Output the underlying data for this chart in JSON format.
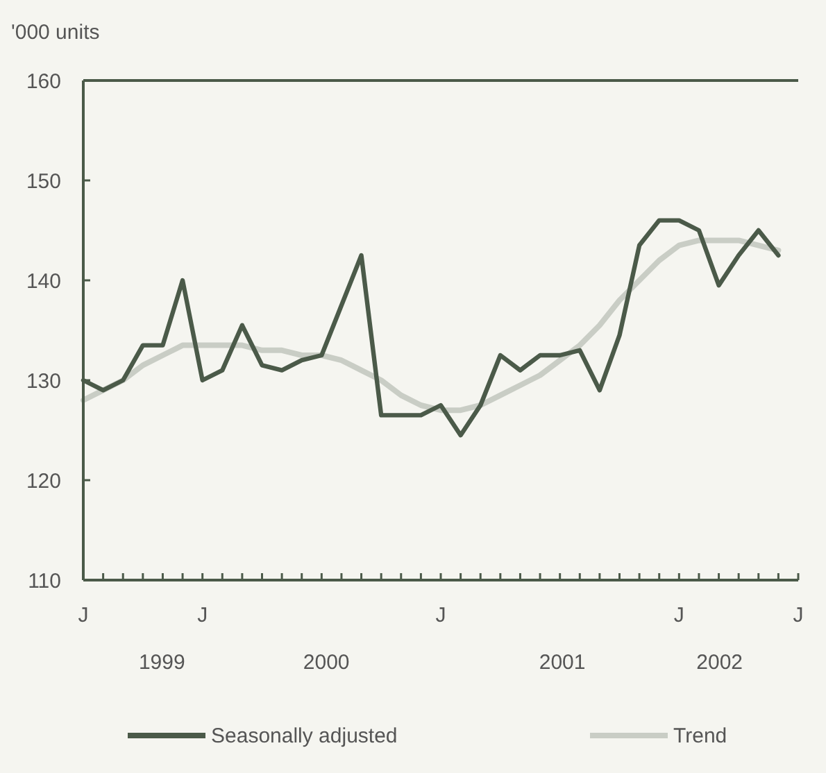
{
  "chart_data": {
    "type": "line",
    "ylabel": "'000 units",
    "categories": [
      "J",
      null,
      null,
      null,
      null,
      null,
      "J",
      null,
      null,
      null,
      null,
      null,
      null,
      null,
      null,
      null,
      null,
      null,
      "J",
      null,
      null,
      null,
      null,
      null,
      null,
      null,
      null,
      null,
      null,
      null,
      "J",
      null,
      null,
      null,
      null,
      null,
      "J"
    ],
    "series": [
      {
        "name": "Seasonally adjusted",
        "color": "#4b5a49",
        "values": [
          130,
          129,
          130,
          133.5,
          133.5,
          140,
          130,
          131,
          135.5,
          131.5,
          131,
          132,
          132.5,
          137.5,
          142.5,
          126.5,
          126.5,
          126.5,
          127.5,
          124.5,
          127.5,
          132.5,
          131,
          132.5,
          132.5,
          133,
          129,
          134.5,
          143.5,
          146,
          146,
          145,
          139.5,
          142.5,
          145,
          142.5,
          null
        ]
      },
      {
        "name": "Trend",
        "color": "#c9cdc5",
        "values": [
          128,
          129,
          130,
          131.5,
          132.5,
          133.5,
          133.5,
          133.5,
          133.5,
          133,
          133,
          132.5,
          132.5,
          132,
          131,
          130,
          128.5,
          127.5,
          127,
          127,
          127.5,
          128.5,
          129.5,
          130.5,
          132,
          133.5,
          135.5,
          138,
          140,
          142,
          143.5,
          144,
          144,
          144,
          143.5,
          143,
          null
        ]
      }
    ],
    "ylim": [
      110,
      160
    ],
    "yticks": [
      110,
      120,
      130,
      140,
      150,
      160
    ],
    "annotations": [
      "1999",
      "2000",
      "2001",
      "2002"
    ],
    "legend": "bottom",
    "marker": "none",
    "line_style": "solid"
  }
}
